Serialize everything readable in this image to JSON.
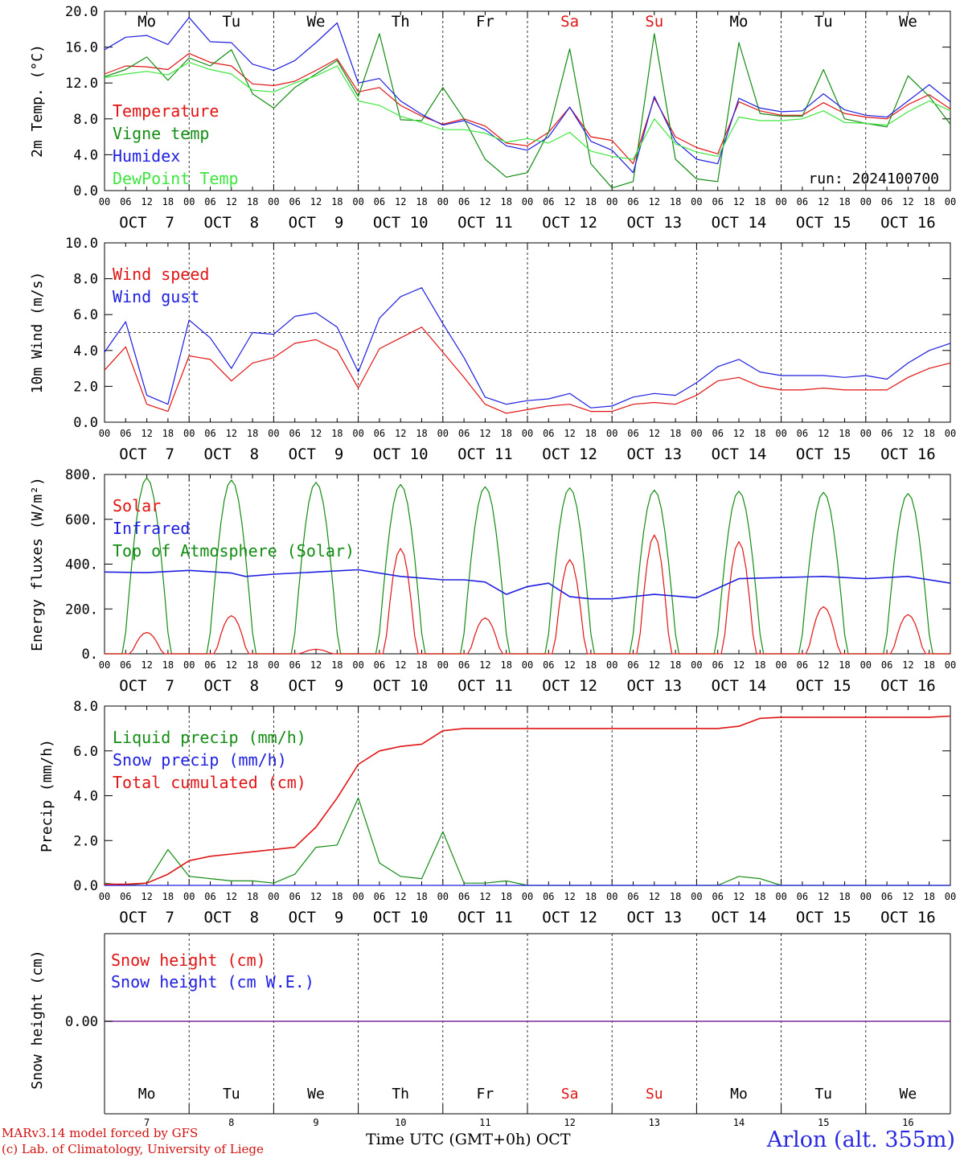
{
  "day_names": [
    "Mo",
    "Tu",
    "We",
    "Th",
    "Fr",
    "Sa",
    "Su",
    "Mo",
    "Tu",
    "We"
  ],
  "weekend_day_index": [
    5,
    6
  ],
  "date_labels": [
    "OCT  7",
    "OCT  8",
    "OCT  9",
    "OCT 10",
    "OCT 11",
    "OCT 12",
    "OCT 13",
    "OCT 14",
    "OCT 15",
    "OCT 16"
  ],
  "hour_labels": [
    "00",
    "06",
    "12",
    "18"
  ],
  "bottom_day_numbers": [
    "7",
    "8",
    "9",
    "10",
    "11",
    "12",
    "13",
    "14",
    "15",
    "16"
  ],
  "footer": {
    "model_line": "MARv3.14 model forced by GFS",
    "credit_line": "(c) Lab. of Climatology, University of Liege",
    "time_label": "Time UTC (GMT+0h) OCT",
    "location": "Arlon (alt. 355m)"
  },
  "colors": {
    "red": "#e01414",
    "green": "#128c12",
    "blue": "#1e1ee0",
    "lightgreen": "#3ce63c",
    "purple": "#7a2a9a"
  },
  "chart_data": [
    {
      "type": "line",
      "ylabel": "2m Temp. (°C)",
      "ylim": [
        0,
        20
      ],
      "yticks": [
        "0.0",
        "4.0",
        "8.0",
        "12.0",
        "16.0",
        "20.0"
      ],
      "annotation": "run: 2024100700",
      "x_hours": [
        0,
        6,
        12,
        18,
        24,
        30,
        36,
        42,
        48,
        54,
        60,
        66,
        72,
        78,
        84,
        90,
        96,
        102,
        108,
        114,
        120,
        126,
        132,
        138,
        144,
        150,
        156,
        162,
        168,
        174,
        180,
        186,
        192,
        198,
        204,
        210,
        216,
        222,
        228,
        234,
        240
      ],
      "series": [
        {
          "name": "Temperature",
          "color": "red",
          "values": [
            13.0,
            13.9,
            13.8,
            13.5,
            15.3,
            14.3,
            13.9,
            11.9,
            11.7,
            12.2,
            13.4,
            14.7,
            11.0,
            11.5,
            9.5,
            8.3,
            7.4,
            8.0,
            7.2,
            5.3,
            5.0,
            6.5,
            9.3,
            6.0,
            5.6,
            3.0,
            10.3,
            6.0,
            4.8,
            4.1,
            9.9,
            8.9,
            8.4,
            8.4,
            9.8,
            8.6,
            8.2,
            8.0,
            9.6,
            10.7,
            9.1
          ]
        },
        {
          "name": "Vigne temp",
          "color": "green",
          "values": [
            12.7,
            13.5,
            14.9,
            12.3,
            14.8,
            13.9,
            15.7,
            10.8,
            9.2,
            11.5,
            13.0,
            14.5,
            10.5,
            17.5,
            7.9,
            7.8,
            11.5,
            8.0,
            3.5,
            1.5,
            2.0,
            6.5,
            15.8,
            3.0,
            0.3,
            1.0,
            17.5,
            3.5,
            1.3,
            1.0,
            16.5,
            8.6,
            8.3,
            8.3,
            13.5,
            8.0,
            7.5,
            7.1,
            12.8,
            10.5,
            7.4
          ]
        },
        {
          "name": "Humidex",
          "color": "blue",
          "values": [
            15.7,
            17.1,
            17.3,
            16.3,
            19.3,
            16.6,
            16.5,
            14.1,
            13.4,
            14.5,
            16.5,
            18.7,
            12.0,
            12.5,
            10.0,
            8.5,
            7.3,
            7.8,
            6.8,
            5.0,
            4.5,
            6.0,
            9.3,
            5.5,
            4.5,
            2.0,
            10.5,
            5.5,
            3.5,
            3.0,
            10.3,
            9.2,
            8.8,
            8.9,
            10.8,
            9.0,
            8.4,
            8.2,
            10.0,
            11.8,
            9.9
          ]
        },
        {
          "name": "DewPoint Temp",
          "color": "lightgreen",
          "values": [
            12.6,
            13.0,
            13.3,
            12.9,
            14.3,
            13.5,
            13.0,
            11.2,
            11.0,
            12.0,
            12.8,
            13.9,
            10.0,
            9.5,
            8.3,
            7.6,
            6.8,
            6.8,
            6.4,
            5.4,
            5.8,
            5.3,
            6.5,
            4.4,
            3.8,
            3.5,
            8.0,
            5.2,
            4.3,
            3.8,
            8.2,
            7.8,
            7.8,
            8.0,
            8.9,
            7.6,
            7.5,
            7.3,
            8.8,
            10.0,
            8.9
          ]
        }
      ]
    },
    {
      "type": "line",
      "ylabel": "10m Wind (m/s)",
      "ylim": [
        0,
        10
      ],
      "yticks": [
        "0.0",
        "2.0",
        "4.0",
        "6.0",
        "8.0",
        "10.0"
      ],
      "ref_line": 5,
      "x_hours": [
        0,
        6,
        12,
        18,
        24,
        30,
        36,
        42,
        48,
        54,
        60,
        66,
        72,
        78,
        84,
        90,
        96,
        102,
        108,
        114,
        120,
        126,
        132,
        138,
        144,
        150,
        156,
        162,
        168,
        174,
        180,
        186,
        192,
        198,
        204,
        210,
        216,
        222,
        228,
        234,
        240
      ],
      "series": [
        {
          "name": "Wind speed",
          "color": "red",
          "values": [
            2.9,
            4.2,
            1.0,
            0.6,
            3.7,
            3.5,
            2.3,
            3.3,
            3.6,
            4.4,
            4.6,
            4.0,
            1.9,
            4.1,
            4.7,
            5.3,
            3.9,
            2.5,
            1.0,
            0.5,
            0.7,
            0.9,
            1.0,
            0.6,
            0.6,
            1.0,
            1.1,
            1.0,
            1.5,
            2.3,
            2.5,
            2.0,
            1.8,
            1.8,
            1.9,
            1.8,
            1.8,
            1.8,
            2.5,
            3.0,
            3.3
          ]
        },
        {
          "name": "Wind gust",
          "color": "blue",
          "values": [
            3.9,
            5.6,
            1.5,
            1.0,
            5.7,
            4.7,
            3.0,
            5.0,
            4.9,
            5.9,
            6.1,
            5.3,
            2.8,
            5.8,
            7.0,
            7.5,
            5.5,
            3.6,
            1.4,
            1.0,
            1.2,
            1.3,
            1.6,
            0.8,
            0.9,
            1.4,
            1.6,
            1.5,
            2.2,
            3.1,
            3.5,
            2.8,
            2.6,
            2.6,
            2.6,
            2.5,
            2.6,
            2.4,
            3.3,
            4.0,
            4.4
          ]
        }
      ]
    },
    {
      "type": "line",
      "ylabel": "Energy fluxes (W/m²)",
      "ylim": [
        0,
        800
      ],
      "yticks": [
        "0.",
        "200.",
        "400.",
        "600.",
        "800."
      ],
      "day_peaks": {
        "top_of_atmosphere_solar": [
          785,
          775,
          765,
          755,
          745,
          740,
          730,
          725,
          720,
          715
        ],
        "solar": [
          95,
          170,
          20,
          470,
          160,
          420,
          530,
          500,
          210,
          175
        ]
      },
      "series": [
        {
          "name": "Solar",
          "color": "red"
        },
        {
          "name": "Infrared",
          "color": "blue",
          "x_hours": [
            0,
            12,
            24,
            36,
            40,
            48,
            60,
            72,
            84,
            96,
            102,
            108,
            114,
            120,
            126,
            132,
            138,
            144,
            156,
            168,
            180,
            192,
            204,
            216,
            228,
            240
          ],
          "values": [
            365,
            362,
            372,
            360,
            345,
            355,
            365,
            375,
            345,
            330,
            330,
            320,
            265,
            300,
            315,
            255,
            245,
            245,
            265,
            250,
            335,
            340,
            345,
            335,
            345,
            315
          ]
        },
        {
          "name": "Top of Atmosphere (Solar)",
          "color": "green"
        }
      ]
    },
    {
      "type": "line",
      "ylabel": "Precip (mm/h)",
      "ylim": [
        0,
        8
      ],
      "yticks": [
        "0.0",
        "2.0",
        "4.0",
        "6.0",
        "8.0"
      ],
      "x_hours": [
        0,
        6,
        12,
        18,
        24,
        30,
        36,
        42,
        48,
        54,
        60,
        66,
        72,
        78,
        84,
        90,
        96,
        102,
        108,
        114,
        120,
        126,
        132,
        138,
        144,
        150,
        156,
        162,
        168,
        174,
        180,
        186,
        192,
        198,
        204,
        210,
        216,
        222,
        228,
        234,
        240
      ],
      "series": [
        {
          "name": "Liquid precip (mm/h)",
          "color": "green",
          "values": [
            0.1,
            0.0,
            0.1,
            1.6,
            0.4,
            0.3,
            0.2,
            0.2,
            0.1,
            0.5,
            1.7,
            1.8,
            3.9,
            1.0,
            0.4,
            0.3,
            2.4,
            0.1,
            0.1,
            0.2,
            0.0,
            0.0,
            0.0,
            0.0,
            0.0,
            0.0,
            0.0,
            0.0,
            0.0,
            0.0,
            0.4,
            0.3,
            0.0,
            0.0,
            0.0,
            0.0,
            0.0,
            0.0,
            0.0,
            0.0,
            0.0
          ]
        },
        {
          "name": "Snow precip (mm/h)",
          "color": "blue",
          "values": [
            0,
            0,
            0,
            0,
            0,
            0,
            0,
            0,
            0,
            0,
            0,
            0,
            0,
            0,
            0,
            0,
            0,
            0,
            0,
            0,
            0,
            0,
            0,
            0,
            0,
            0,
            0,
            0,
            0,
            0,
            0,
            0,
            0,
            0,
            0,
            0,
            0,
            0,
            0,
            0,
            0
          ]
        },
        {
          "name": "Total cumulated (cm)",
          "color": "red",
          "values": [
            0.05,
            0.05,
            0.1,
            0.5,
            1.1,
            1.3,
            1.4,
            1.5,
            1.6,
            1.7,
            2.6,
            3.9,
            5.4,
            6.0,
            6.2,
            6.3,
            6.9,
            7.0,
            7.0,
            7.0,
            7.0,
            7.0,
            7.0,
            7.0,
            7.0,
            7.0,
            7.0,
            7.0,
            7.0,
            7.0,
            7.1,
            7.45,
            7.5,
            7.5,
            7.5,
            7.5,
            7.5,
            7.5,
            7.5,
            7.5,
            7.55
          ]
        }
      ]
    },
    {
      "type": "line",
      "ylabel": "Snow height (cm)",
      "yticks": [
        "0.00"
      ],
      "series": [
        {
          "name": "Snow height (cm)",
          "color": "red",
          "values": [
            0,
            0
          ]
        },
        {
          "name": "Snow height (cm W.E.)",
          "color": "blue",
          "values": [
            0,
            0
          ]
        }
      ]
    }
  ]
}
